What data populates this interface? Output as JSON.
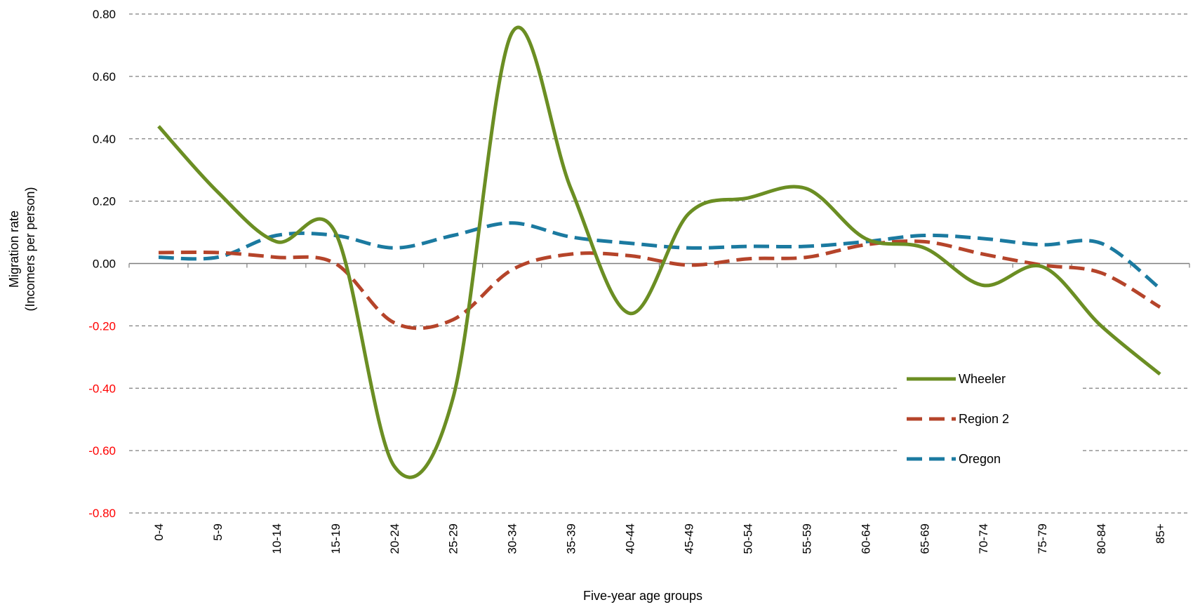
{
  "chart_data": {
    "type": "line",
    "title": "",
    "xlabel": "Five-year age groups",
    "ylabel_line1": "Migration rate",
    "ylabel_line2": "(Incomers per person)",
    "categories": [
      "0-4",
      "5-9",
      "10-14",
      "15-19",
      "20-24",
      "25-29",
      "30-34",
      "35-39",
      "40-44",
      "45-49",
      "50-54",
      "55-59",
      "60-64",
      "65-69",
      "70-74",
      "75-79",
      "80-84",
      "85+"
    ],
    "y_ticks": [
      "0.80",
      "0.60",
      "0.40",
      "0.20",
      "0.00",
      "-0.20",
      "-0.40",
      "-0.60",
      "-0.80"
    ],
    "ylim": [
      -0.8,
      0.8
    ],
    "grid": true,
    "legend_position": "bottom-right",
    "series": [
      {
        "name": "Wheeler",
        "color": "#6b8e23",
        "dash": "solid",
        "values": [
          0.44,
          0.23,
          0.07,
          0.1,
          -0.65,
          -0.43,
          0.74,
          0.24,
          -0.16,
          0.16,
          0.21,
          0.24,
          0.08,
          0.05,
          -0.07,
          -0.01,
          -0.2,
          -0.355
        ]
      },
      {
        "name": "Region 2",
        "color": "#b5442a",
        "dash": "dashed",
        "values": [
          0.035,
          0.035,
          0.02,
          0.0,
          -0.19,
          -0.18,
          -0.02,
          0.03,
          0.025,
          -0.005,
          0.015,
          0.02,
          0.06,
          0.07,
          0.03,
          -0.005,
          -0.03,
          -0.14
        ]
      },
      {
        "name": "Oregon",
        "color": "#1b7aa0",
        "dash": "dashed",
        "values": [
          0.02,
          0.02,
          0.09,
          0.09,
          0.05,
          0.09,
          0.13,
          0.085,
          0.065,
          0.05,
          0.055,
          0.055,
          0.07,
          0.09,
          0.08,
          0.06,
          0.065,
          -0.08
        ]
      }
    ],
    "colors": {
      "negative_tick": "#ff0000",
      "positive_tick": "#000000",
      "grid": "#7f7f7f",
      "axis": "#7f7f7f"
    }
  }
}
